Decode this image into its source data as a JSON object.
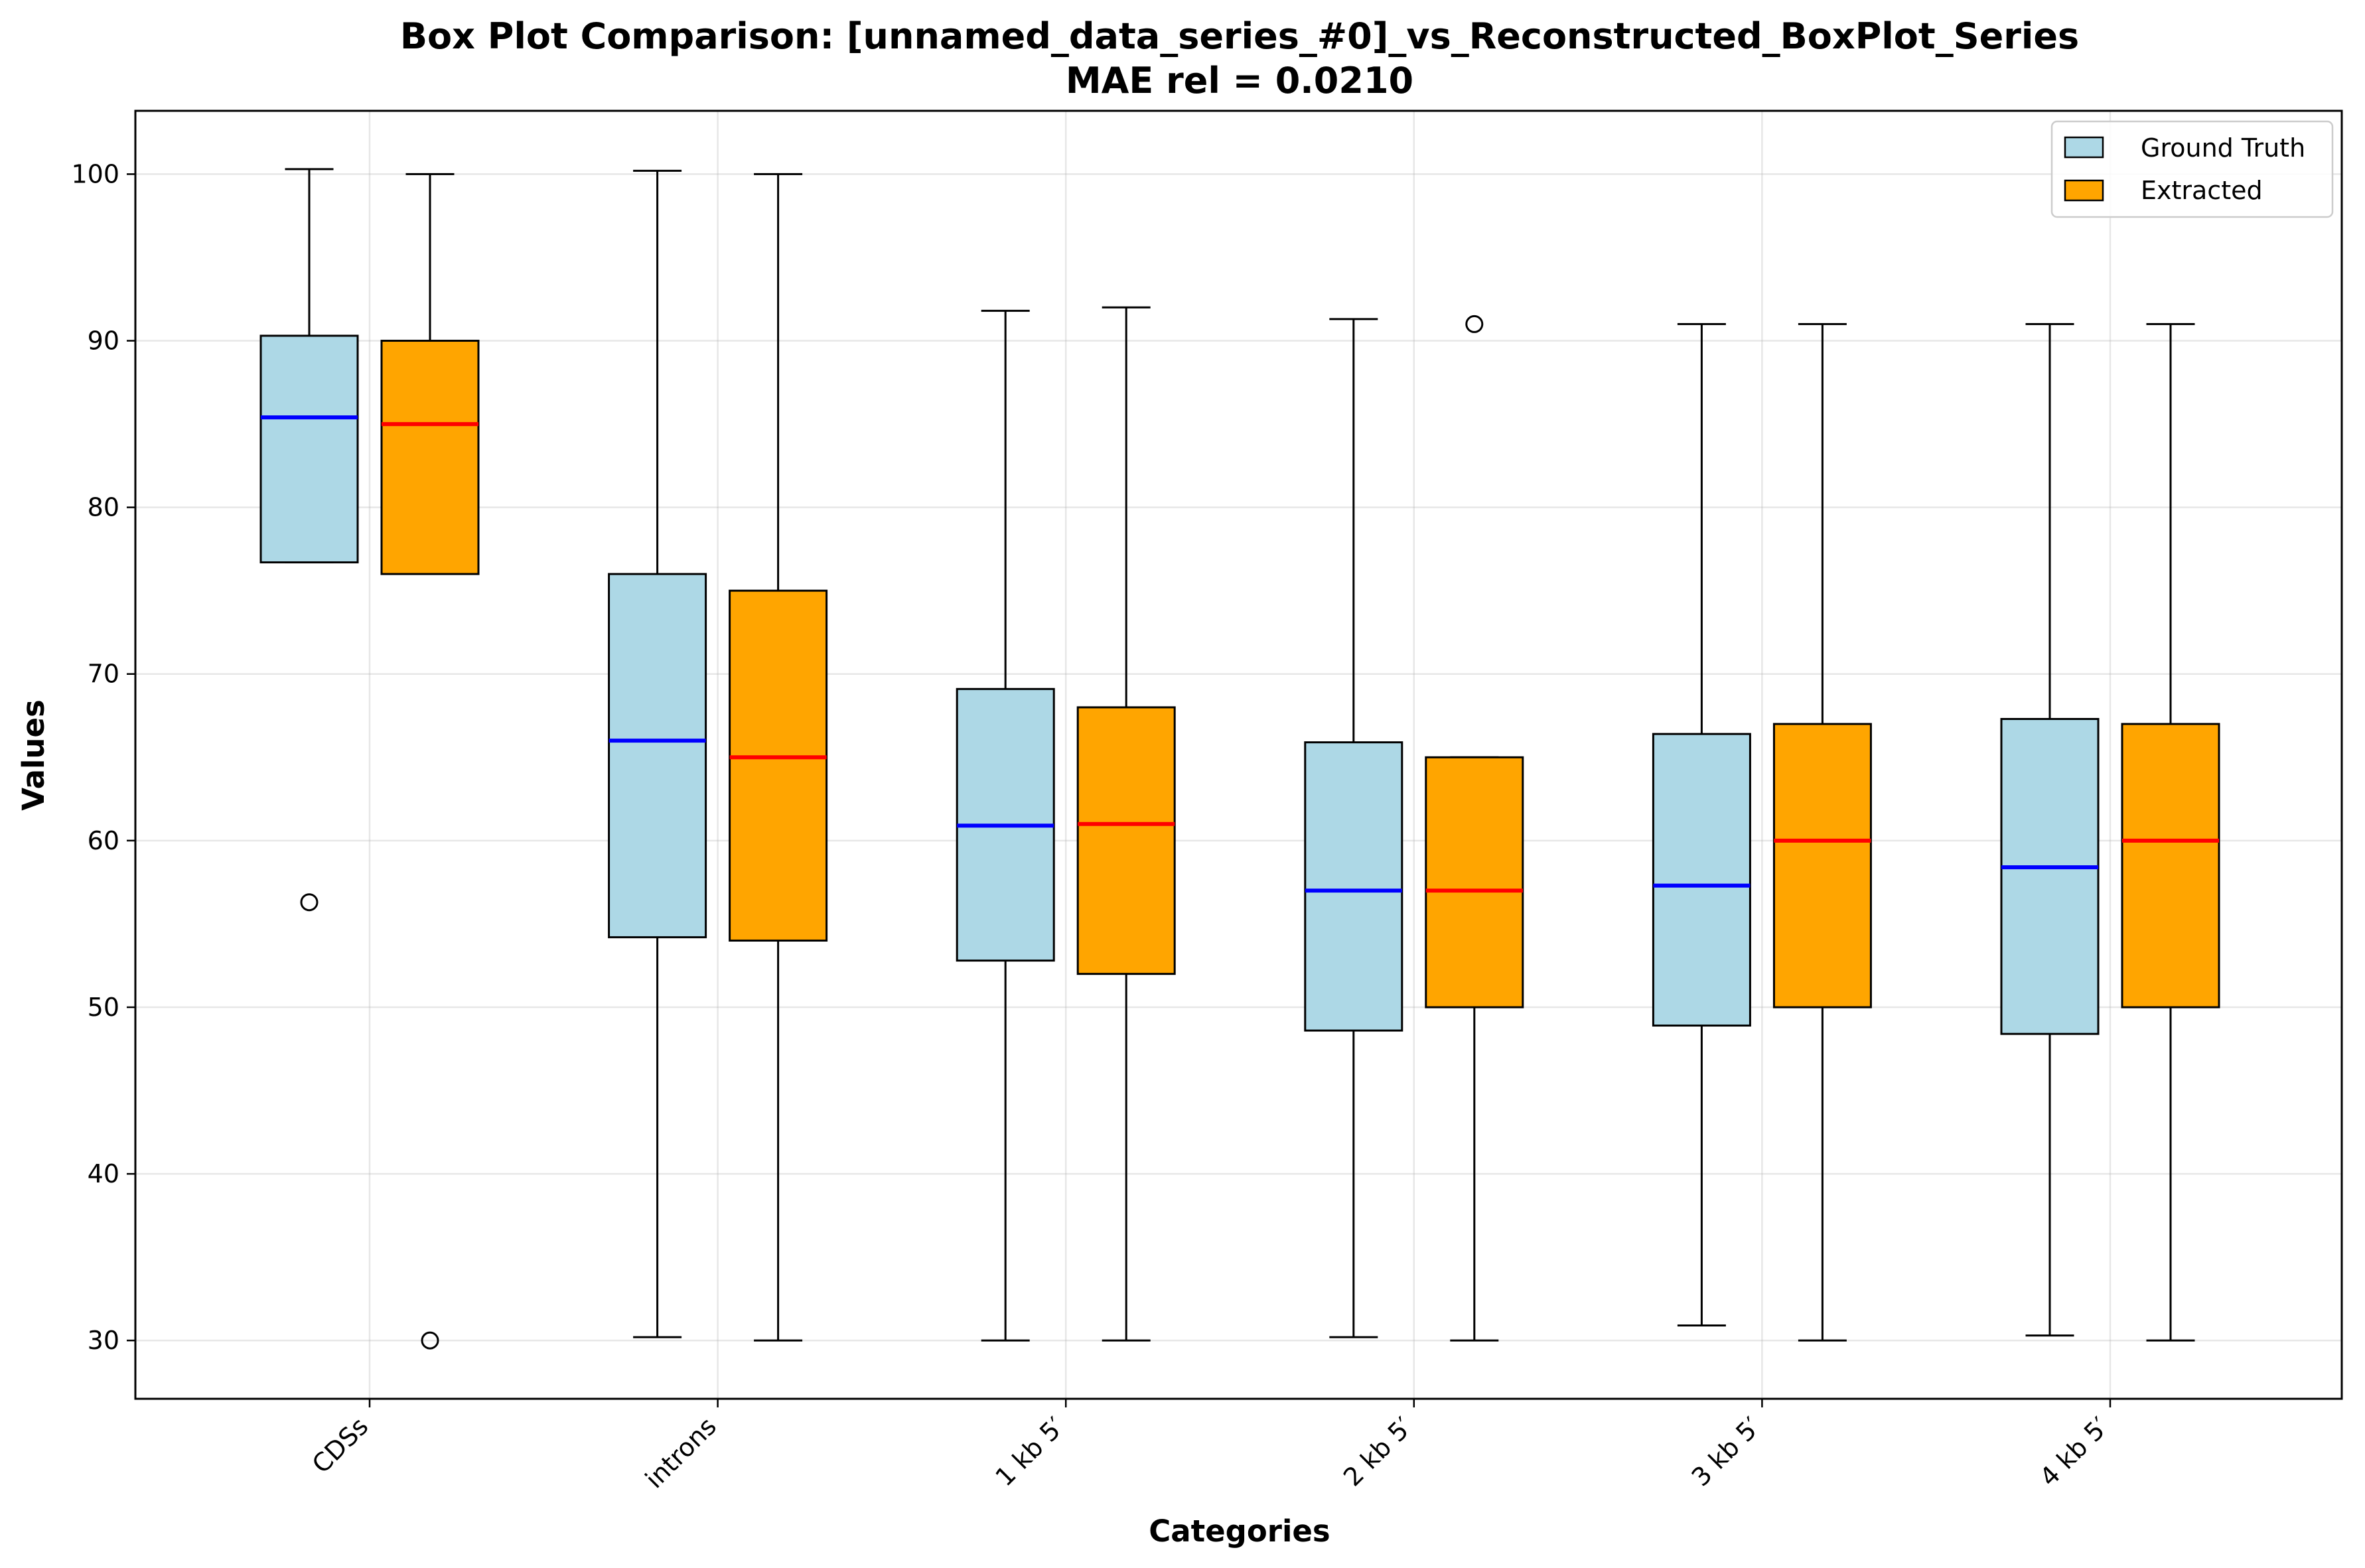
{
  "chart_data": {
    "type": "box",
    "title": "Box Plot Comparison: [unnamed_data_series_#0]_vs_Reconstructed_BoxPlot_Series",
    "subtitle": "MAE rel = 0.0210",
    "xlabel": "Categories",
    "ylabel": "Values",
    "ylim": [
      26.5,
      103.8
    ],
    "yticks": [
      30,
      40,
      50,
      60,
      70,
      80,
      90,
      100
    ],
    "ytick_labels": [
      "30",
      "40",
      "50",
      "60",
      "70",
      "80",
      "90",
      "100"
    ],
    "grid": true,
    "legend_position": "top-right",
    "categories": [
      "CDSs",
      "introns",
      "1 kb 5′",
      "2 kb 5′",
      "3 kb 5′",
      "4 kb 5′"
    ],
    "series": [
      {
        "name": "Ground Truth",
        "fill": "#add8e6",
        "median_color": "#0000ff",
        "boxes": [
          {
            "whisker_low": 76.7,
            "q1": 76.7,
            "median": 85.4,
            "q3": 90.3,
            "whisker_high": 100.3,
            "outliers": [
              56.3
            ]
          },
          {
            "whisker_low": 30.2,
            "q1": 54.2,
            "median": 66.0,
            "q3": 76.0,
            "whisker_high": 100.2,
            "outliers": []
          },
          {
            "whisker_low": 30.0,
            "q1": 52.8,
            "median": 60.9,
            "q3": 69.1,
            "whisker_high": 91.8,
            "outliers": []
          },
          {
            "whisker_low": 30.2,
            "q1": 48.6,
            "median": 57.0,
            "q3": 65.9,
            "whisker_high": 91.3,
            "outliers": []
          },
          {
            "whisker_low": 30.9,
            "q1": 48.9,
            "median": 57.3,
            "q3": 66.4,
            "whisker_high": 91.0,
            "outliers": []
          },
          {
            "whisker_low": 30.3,
            "q1": 48.4,
            "median": 58.4,
            "q3": 67.3,
            "whisker_high": 91.0,
            "outliers": []
          }
        ]
      },
      {
        "name": "Extracted",
        "fill": "#ffa500",
        "median_color": "#ff0000",
        "boxes": [
          {
            "whisker_low": 76.0,
            "q1": 76.0,
            "median": 85.0,
            "q3": 90.0,
            "whisker_high": 100.0,
            "outliers": [
              30.0
            ]
          },
          {
            "whisker_low": 30.0,
            "q1": 54.0,
            "median": 65.0,
            "q3": 75.0,
            "whisker_high": 100.0,
            "outliers": []
          },
          {
            "whisker_low": 30.0,
            "q1": 52.0,
            "median": 61.0,
            "q3": 68.0,
            "whisker_high": 92.0,
            "outliers": []
          },
          {
            "whisker_low": 30.0,
            "q1": 50.0,
            "median": 57.0,
            "q3": 65.0,
            "whisker_high": 65.0,
            "outliers": [
              91.0
            ]
          },
          {
            "whisker_low": 30.0,
            "q1": 50.0,
            "median": 60.0,
            "q3": 67.0,
            "whisker_high": 91.0,
            "outliers": []
          },
          {
            "whisker_low": 30.0,
            "q1": 50.0,
            "median": 60.0,
            "q3": 67.0,
            "whisker_high": 91.0,
            "outliers": []
          }
        ]
      }
    ]
  }
}
